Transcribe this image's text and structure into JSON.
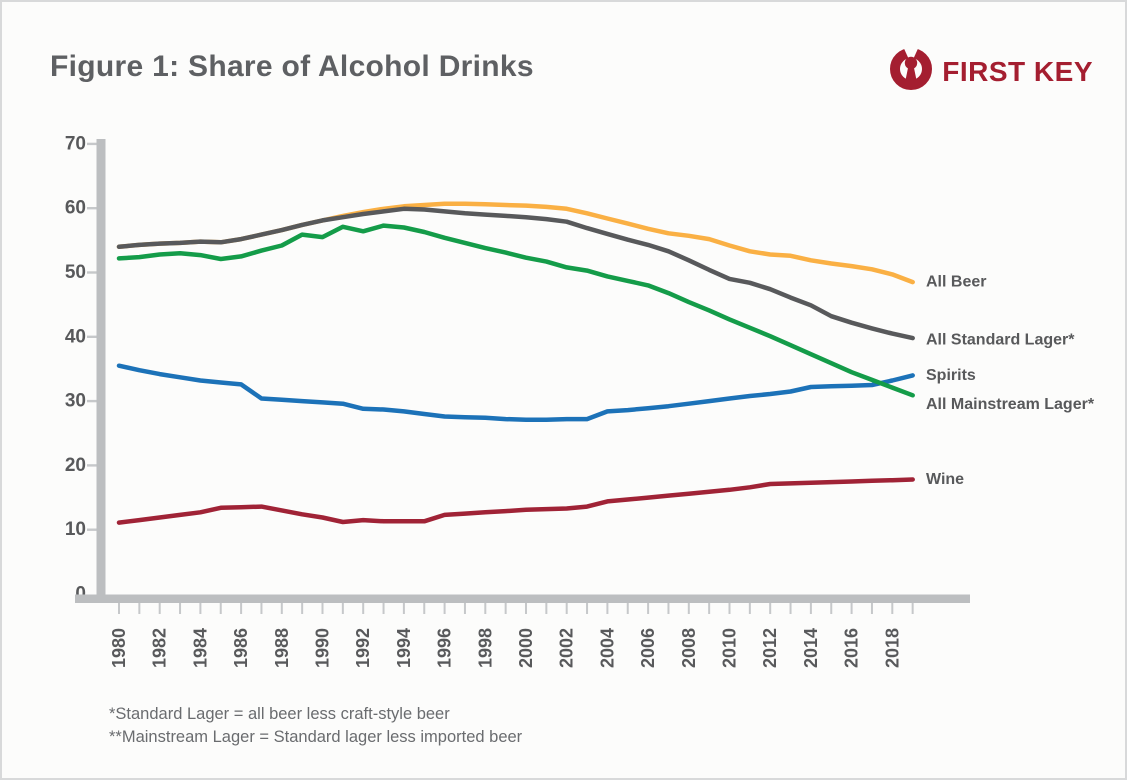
{
  "header": {
    "title": "Figure 1: Share of Alcohol Drinks",
    "logo_text": "FIRST KEY",
    "logo_color": "#A41E30",
    "logo_icon": "keyhole-icon"
  },
  "footnotes": [
    "*Standard Lager = all beer less craft-style beer",
    "**Mainstream Lager = Standard lager less imported beer"
  ],
  "chart_data": {
    "type": "line",
    "title": "Figure 1: Share of Alcohol Drinks",
    "xlabel": "",
    "ylabel": "",
    "ylim": [
      0,
      70
    ],
    "grid": false,
    "legend_position": "right-end-labels",
    "x": [
      1980,
      1981,
      1982,
      1983,
      1984,
      1985,
      1986,
      1987,
      1988,
      1989,
      1990,
      1991,
      1992,
      1993,
      1994,
      1995,
      1996,
      1997,
      1998,
      1999,
      2000,
      2001,
      2002,
      2003,
      2004,
      2005,
      2006,
      2007,
      2008,
      2009,
      2010,
      2011,
      2012,
      2013,
      2014,
      2015,
      2016,
      2017,
      2018,
      2019
    ],
    "x_tick_labels": [
      "1980",
      "1982",
      "1984",
      "1986",
      "1988",
      "1990",
      "1992",
      "1994",
      "1996",
      "1998",
      "2000",
      "2002",
      "2004",
      "2006",
      "2008",
      "2010",
      "2012",
      "2014",
      "2016",
      "2018"
    ],
    "y_ticks": [
      0,
      10,
      20,
      30,
      40,
      50,
      60,
      70
    ],
    "y_tick_labels": [
      "0",
      "10",
      "20",
      "30",
      "40",
      "50",
      "60",
      "70"
    ],
    "axis_color": "#BCBEC0",
    "tick_color": "#C6C8CA",
    "label_color": "#58595B",
    "series": [
      {
        "name": "All Beer",
        "color": "#FAB044",
        "values": [
          54,
          54.3,
          54.5,
          54.6,
          54.8,
          54.7,
          55.2,
          55.9,
          56.6,
          57.4,
          58.1,
          58.8,
          59.4,
          59.9,
          60.3,
          60.5,
          60.7,
          60.7,
          60.6,
          60.5,
          60.4,
          60.2,
          59.9,
          59.2,
          58.4,
          57.6,
          56.8,
          56.1,
          55.7,
          55.2,
          54.2,
          53.3,
          52.8,
          52.6,
          51.9,
          51.4,
          51,
          50.5,
          49.7,
          48.5
        ]
      },
      {
        "name": "All Standard Lager*",
        "color": "#58595B",
        "values": [
          54,
          54.3,
          54.5,
          54.6,
          54.8,
          54.7,
          55.2,
          55.9,
          56.6,
          57.4,
          58.1,
          58.6,
          59.1,
          59.5,
          59.9,
          59.8,
          59.5,
          59.2,
          59,
          58.8,
          58.6,
          58.3,
          57.9,
          56.9,
          56,
          55.1,
          54.3,
          53.3,
          51.9,
          50.4,
          49,
          48.4,
          47.4,
          46.1,
          44.9,
          43.2,
          42.2,
          41.3,
          40.5,
          39.8
        ]
      },
      {
        "name": "Spirits",
        "color": "#1C72B8",
        "values": [
          35.5,
          34.8,
          34.2,
          33.7,
          33.2,
          32.9,
          32.6,
          30.4,
          30.2,
          30,
          29.8,
          29.6,
          28.8,
          28.7,
          28.4,
          28,
          27.6,
          27.5,
          27.4,
          27.2,
          27.1,
          27.1,
          27.2,
          27.2,
          28.4,
          28.6,
          28.9,
          29.2,
          29.6,
          30,
          30.4,
          30.8,
          31.1,
          31.5,
          32.2,
          32.3,
          32.4,
          32.5,
          33.2,
          34
        ]
      },
      {
        "name": "All Mainstream Lager*",
        "color": "#149C49",
        "values": [
          52.2,
          52.4,
          52.8,
          53,
          52.7,
          52.1,
          52.5,
          53.4,
          54.2,
          55.9,
          55.5,
          57.1,
          56.4,
          57.3,
          57,
          56.3,
          55.4,
          54.6,
          53.8,
          53.1,
          52.3,
          51.7,
          50.8,
          50.3,
          49.4,
          48.7,
          48,
          46.8,
          45.4,
          44.1,
          42.7,
          41.4,
          40.1,
          38.7,
          37.3,
          35.9,
          34.5,
          33.3,
          32.1,
          30.9
        ]
      },
      {
        "name": "Wine",
        "color": "#A02336",
        "values": [
          11.1,
          11.5,
          11.9,
          12.3,
          12.7,
          13.4,
          13.5,
          13.6,
          13,
          12.4,
          11.9,
          11.2,
          11.5,
          11.3,
          11.3,
          11.3,
          12.3,
          12.5,
          12.7,
          12.9,
          13.1,
          13.2,
          13.3,
          13.6,
          14.4,
          14.7,
          15,
          15.3,
          15.6,
          15.9,
          16.2,
          16.6,
          17.1,
          17.2,
          17.3,
          17.4,
          17.5,
          17.6,
          17.7,
          17.8
        ]
      }
    ]
  }
}
